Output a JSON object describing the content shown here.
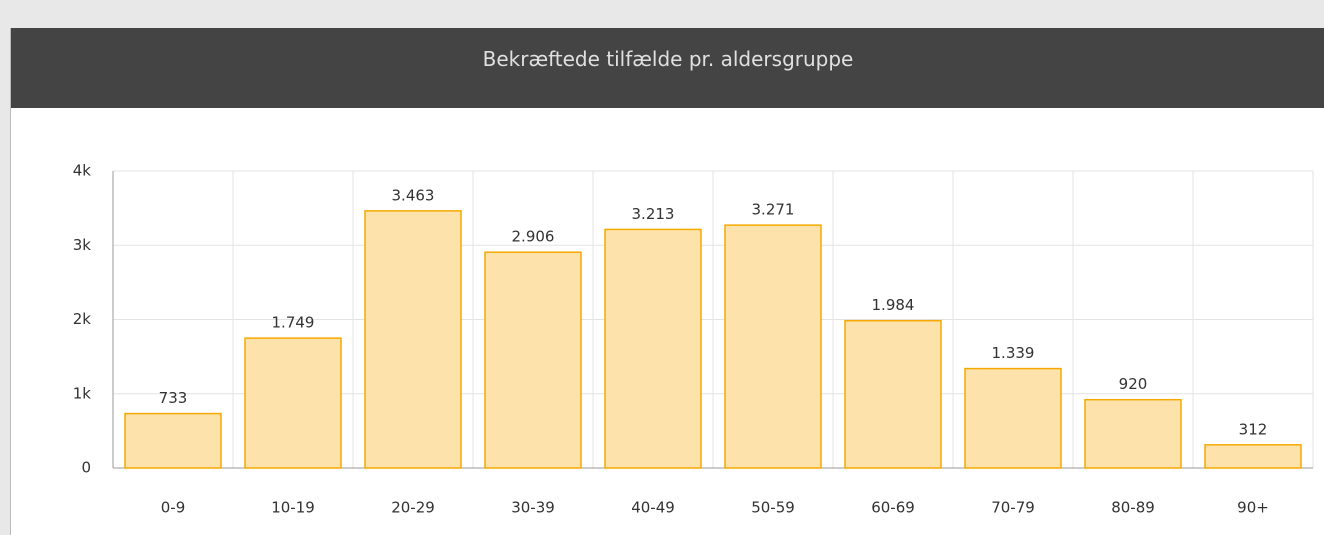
{
  "chart_data": {
    "type": "bar",
    "title": "Bekræftede tilfælde pr. aldersgruppe",
    "categories": [
      "0-9",
      "10-19",
      "20-29",
      "30-39",
      "40-49",
      "50-59",
      "60-69",
      "70-79",
      "80-89",
      "90+"
    ],
    "values": [
      733,
      1749,
      3463,
      2906,
      3213,
      3271,
      1984,
      1339,
      920,
      312
    ],
    "value_labels": [
      "733",
      "1.749",
      "3.463",
      "2.906",
      "3.213",
      "3.271",
      "1.984",
      "1.339",
      "920",
      "312"
    ],
    "color": "#fde3ab",
    "edge_color": "#f5a900",
    "ylim": [
      0,
      4000
    ],
    "yticks": [
      0,
      {
        "value": 1000,
        "label": "1k"
      },
      {
        "value": 2000,
        "label": "2k"
      },
      {
        "value": 3000,
        "label": "3k"
      },
      {
        "value": 4000,
        "label": "4k"
      }
    ],
    "grid": true
  }
}
